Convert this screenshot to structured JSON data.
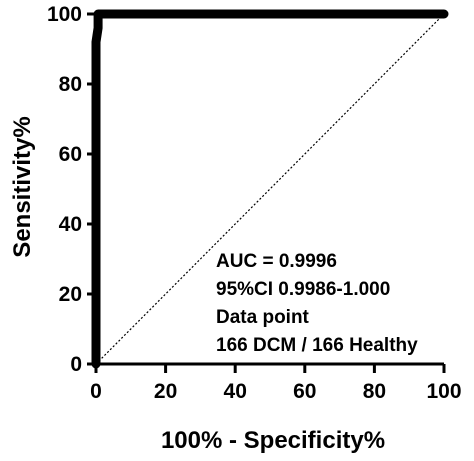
{
  "chart_data": {
    "type": "line",
    "xlabel": "100% - Specificity%",
    "ylabel": "Sensitivity%",
    "xlim": [
      0,
      100
    ],
    "ylim": [
      0,
      100
    ],
    "xticks": [
      "0",
      "20",
      "40",
      "60",
      "80",
      "100"
    ],
    "yticks": [
      "0",
      "20",
      "40",
      "60",
      "80",
      "100"
    ],
    "grid": false,
    "series": [
      {
        "role": "roc-curve",
        "color": "#000000",
        "x": [
          0,
          0,
          0.6,
          0.6,
          100
        ],
        "y": [
          0,
          92,
          96,
          100,
          100
        ]
      },
      {
        "role": "reference-line",
        "style": "dotted",
        "color": "#000000",
        "x": [
          0,
          100
        ],
        "y": [
          0,
          100
        ]
      }
    ],
    "annotations": [
      "AUC = 0.9996",
      "95%CI 0.9986-1.000",
      "Data point",
      "166 DCM / 166 Healthy"
    ]
  }
}
